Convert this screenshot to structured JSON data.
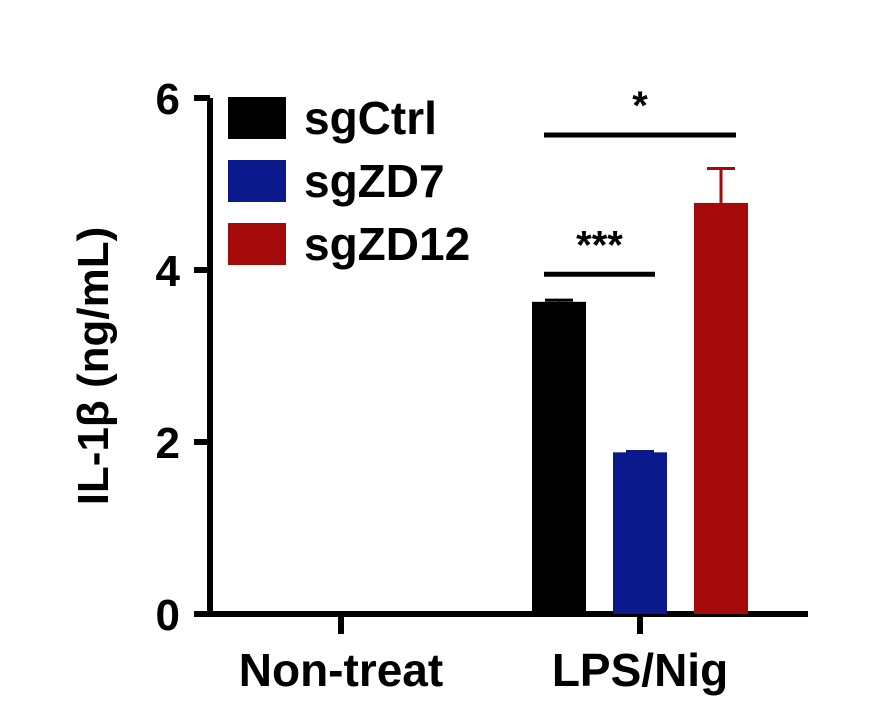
{
  "chart_data": {
    "type": "bar",
    "ylabel": "IL-1β (ng/mL)",
    "ylim": [
      0,
      6
    ],
    "yticks": [
      0,
      2,
      4,
      6
    ],
    "categories": [
      "Non-treat",
      "LPS/Nig"
    ],
    "series": [
      {
        "name": "sgCtrl",
        "color": "#000000",
        "values": [
          0,
          3.63
        ],
        "error": [
          0,
          0.02
        ]
      },
      {
        "name": "sgZD7",
        "color": "#0a1a8c",
        "values": [
          0,
          1.88
        ],
        "error": [
          0,
          0.01
        ]
      },
      {
        "name": "sgZD12",
        "color": "#a50a0a",
        "values": [
          0,
          4.78
        ],
        "error": [
          0,
          0.4
        ]
      }
    ],
    "legend_position": "top-left",
    "significance": [
      {
        "label": "***",
        "category": "LPS/Nig",
        "from_series": "sgCtrl",
        "to_series": "sgZD7",
        "y": 3.95
      },
      {
        "label": "*",
        "category": "LPS/Nig",
        "from_series": "sgCtrl",
        "to_series": "sgZD12",
        "y": 5.57
      }
    ]
  }
}
